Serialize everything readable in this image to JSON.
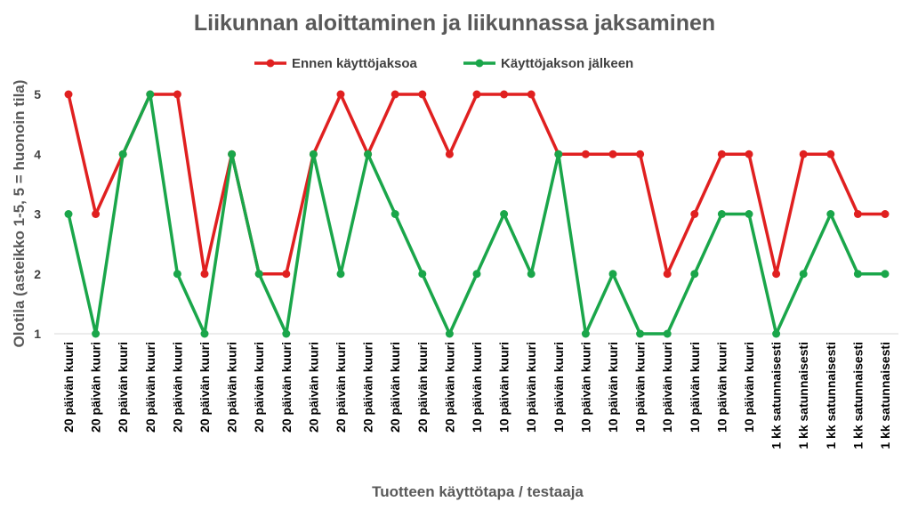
{
  "chart_data": {
    "type": "line",
    "title": "Liikunnan aloittaminen ja liikunnassa jaksaminen",
    "xlabel": "Tuotteen käyttötapa / testaaja",
    "ylabel": "Olotila (asteikko 1-5, 5 = huonoin tila)",
    "ylim": [
      1,
      5
    ],
    "yticks": [
      "1",
      "2",
      "3",
      "4",
      "5"
    ],
    "grid": false,
    "legend_position": "top",
    "categories": [
      "20 päivän kuuri",
      "20 päivän kuuri",
      "20 päivän kuuri",
      "20 päivän kuuri",
      "20 päivän kuuri",
      "20 päivän kuuri",
      "20 päivän kuuri",
      "20 päivän kuuri",
      "20 päivän kuuri",
      "20 päivän kuuri",
      "20 päivän kuuri",
      "20 päivän kuuri",
      "20 päivän kuuri",
      "20 päivän kuuri",
      "20 päivän kuuri",
      "10 päivän kuuri",
      "10 päivän kuuri",
      "10 päivän kuuri",
      "10 päivän kuuri",
      "10 päivän kuuri",
      "10 päivän kuuri",
      "10 päivän kuuri",
      "10 päivän kuuri",
      "10 päivän kuuri",
      "10 päivän kuuri",
      "10 päivän kuuri",
      "1 kk satunnaisesti",
      "1 kk satunnaisesti",
      "1 kk satunnaisesti",
      "1 kk satunnaisesti",
      "1 kk satunnaisesti"
    ],
    "series": [
      {
        "name": "Ennen käyttöjaksoa",
        "color": "#e02020",
        "values": [
          5,
          3,
          4,
          5,
          5,
          2,
          4,
          2,
          2,
          4,
          5,
          4,
          5,
          5,
          4,
          5,
          5,
          5,
          4,
          4,
          4,
          4,
          2,
          3,
          4,
          4,
          2,
          4,
          4,
          3,
          3
        ]
      },
      {
        "name": "Käyttöjakson jälkeen",
        "color": "#1aa64a",
        "values": [
          3,
          1,
          4,
          5,
          2,
          1,
          4,
          2,
          1,
          4,
          2,
          4,
          3,
          2,
          1,
          2,
          3,
          2,
          4,
          1,
          2,
          1,
          1,
          2,
          3,
          3,
          1,
          2,
          3,
          2,
          2
        ]
      }
    ]
  }
}
